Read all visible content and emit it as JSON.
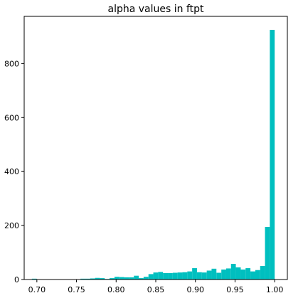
{
  "chart_data": {
    "type": "bar",
    "title": "alpha values in ftpt",
    "xlabel": "",
    "ylabel": "",
    "xlim": [
      0.684,
      1.016
    ],
    "ylim": [
      0,
      975
    ],
    "grid": false,
    "legend": "none",
    "bar_color": "#00bfbf",
    "x_ticks": [
      0.7,
      0.75,
      0.8,
      0.85,
      0.9,
      0.95,
      1.0
    ],
    "x_tick_labels": [
      "0.70",
      "0.75",
      "0.80",
      "0.85",
      "0.90",
      "0.95",
      "1.00"
    ],
    "y_ticks": [
      0,
      200,
      400,
      600,
      800
    ],
    "y_tick_labels": [
      "0",
      "200",
      "400",
      "600",
      "800"
    ],
    "bin_edges": [
      0.6937,
      0.6998,
      0.706,
      0.7121,
      0.7182,
      0.7243,
      0.7305,
      0.7366,
      0.7427,
      0.7488,
      0.755,
      0.7611,
      0.7672,
      0.7734,
      0.7795,
      0.7856,
      0.7917,
      0.7979,
      0.804,
      0.8101,
      0.8162,
      0.8224,
      0.8285,
      0.8346,
      0.8408,
      0.8469,
      0.853,
      0.8591,
      0.8653,
      0.8714,
      0.8775,
      0.8836,
      0.8898,
      0.8959,
      0.902,
      0.9082,
      0.9143,
      0.9204,
      0.9265,
      0.9327,
      0.9388,
      0.9449,
      0.951,
      0.9572,
      0.9633,
      0.9694,
      0.9756,
      0.9817,
      0.9878,
      0.9939,
      1.0
    ],
    "counts": [
      3,
      0,
      0,
      0,
      0,
      0,
      0,
      0,
      0,
      1,
      3,
      3,
      4,
      6,
      5,
      2,
      5,
      10,
      9,
      8,
      8,
      14,
      5,
      10,
      20,
      26,
      28,
      24,
      24,
      25,
      26,
      27,
      30,
      42,
      27,
      26,
      33,
      40,
      25,
      37,
      41,
      58,
      45,
      37,
      42,
      30,
      35,
      50,
      195,
      925
    ]
  }
}
